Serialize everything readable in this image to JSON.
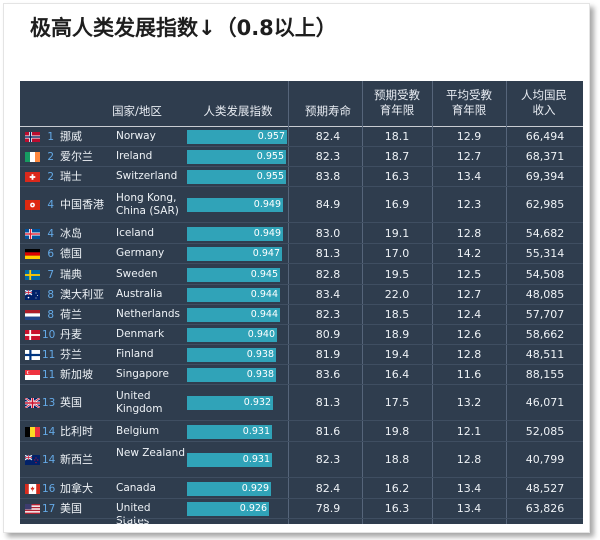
{
  "title": "极高人类发展指数↓（0.8以上）",
  "headers": {
    "country": "国家/地区",
    "hdi": "人类发展指数",
    "life": "预期寿命",
    "expected_school_1": "预期受教",
    "expected_school_2": "育年限",
    "mean_school_1": "平均受教",
    "mean_school_2": "育年限",
    "gni_1": "人均国民",
    "gni_2": "收入"
  },
  "colors": {
    "table_bg": "#2f3d4e",
    "bar": "#30a3b8",
    "rank": "#64a9e6"
  },
  "rows": [
    {
      "rank": "1",
      "cn": "挪威",
      "en": "Norway",
      "hdi": "0.957",
      "hdi_value": 0.957,
      "life": "82.4",
      "expected": "18.1",
      "mean": "12.9",
      "gni": "66,494",
      "flag": "norway-flag"
    },
    {
      "rank": "2",
      "cn": "爱尔兰",
      "en": "Ireland",
      "hdi": "0.955",
      "hdi_value": 0.955,
      "life": "82.3",
      "expected": "18.7",
      "mean": "12.7",
      "gni": "68,371",
      "flag": "ireland-flag"
    },
    {
      "rank": "2",
      "cn": "瑞士",
      "en": "Switzerland",
      "hdi": "0.955",
      "hdi_value": 0.955,
      "life": "83.8",
      "expected": "16.3",
      "mean": "13.4",
      "gni": "69,394",
      "flag": "switzerland-flag"
    },
    {
      "rank": "4",
      "cn": "中国香港",
      "en": "Hong Kong, China (SAR)",
      "hdi": "0.949",
      "hdi_value": 0.949,
      "life": "84.9",
      "expected": "16.9",
      "mean": "12.3",
      "gni": "62,985",
      "flag": "hongkong-flag"
    },
    {
      "rank": "4",
      "cn": "冰岛",
      "en": "Iceland",
      "hdi": "0.949",
      "hdi_value": 0.949,
      "life": "83.0",
      "expected": "19.1",
      "mean": "12.8",
      "gni": "54,682",
      "flag": "iceland-flag"
    },
    {
      "rank": "6",
      "cn": "德国",
      "en": "Germany",
      "hdi": "0.947",
      "hdi_value": 0.947,
      "life": "81.3",
      "expected": "17.0",
      "mean": "14.2",
      "gni": "55,314",
      "flag": "germany-flag"
    },
    {
      "rank": "7",
      "cn": "瑞典",
      "en": "Sweden",
      "hdi": "0.945",
      "hdi_value": 0.945,
      "life": "82.8",
      "expected": "19.5",
      "mean": "12.5",
      "gni": "54,508",
      "flag": "sweden-flag"
    },
    {
      "rank": "8",
      "cn": "澳大利亚",
      "en": "Australia",
      "hdi": "0.944",
      "hdi_value": 0.944,
      "life": "83.4",
      "expected": "22.0",
      "mean": "12.7",
      "gni": "48,085",
      "flag": "australia-flag"
    },
    {
      "rank": "8",
      "cn": "荷兰",
      "en": "Netherlands",
      "hdi": "0.944",
      "hdi_value": 0.944,
      "life": "82.3",
      "expected": "18.5",
      "mean": "12.4",
      "gni": "57,707",
      "flag": "netherlands-flag"
    },
    {
      "rank": "10",
      "cn": "丹麦",
      "en": "Denmark",
      "hdi": "0.940",
      "hdi_value": 0.94,
      "life": "80.9",
      "expected": "18.9",
      "mean": "12.6",
      "gni": "58,662",
      "flag": "denmark-flag"
    },
    {
      "rank": "11",
      "cn": "芬兰",
      "en": "Finland",
      "hdi": "0.938",
      "hdi_value": 0.938,
      "life": "81.9",
      "expected": "19.4",
      "mean": "12.8",
      "gni": "48,511",
      "flag": "finland-flag"
    },
    {
      "rank": "11",
      "cn": "新加坡",
      "en": "Singapore",
      "hdi": "0.938",
      "hdi_value": 0.938,
      "life": "83.6",
      "expected": "16.4",
      "mean": "11.6",
      "gni": "88,155",
      "flag": "singapore-flag"
    },
    {
      "rank": "13",
      "cn": "英国",
      "en": "United Kingdom",
      "hdi": "0.932",
      "hdi_value": 0.932,
      "life": "81.3",
      "expected": "17.5",
      "mean": "13.2",
      "gni": "46,071",
      "flag": "uk-flag"
    },
    {
      "rank": "14",
      "cn": "比利时",
      "en": "Belgium",
      "hdi": "0.931",
      "hdi_value": 0.931,
      "life": "81.6",
      "expected": "19.8",
      "mean": "12.1",
      "gni": "52,085",
      "flag": "belgium-flag"
    },
    {
      "rank": "14",
      "cn": "新西兰",
      "en": "New Zealand",
      "hdi": "0.931",
      "hdi_value": 0.931,
      "life": "82.3",
      "expected": "18.8",
      "mean": "12.8",
      "gni": "40,799",
      "flag": "newzealand-flag"
    },
    {
      "rank": "16",
      "cn": "加拿大",
      "en": "Canada",
      "hdi": "0.929",
      "hdi_value": 0.929,
      "life": "82.4",
      "expected": "16.2",
      "mean": "13.4",
      "gni": "48,527",
      "flag": "canada-flag"
    },
    {
      "rank": "17",
      "cn": "美国",
      "en": "United States",
      "hdi": "0.926",
      "hdi_value": 0.926,
      "life": "78.9",
      "expected": "16.3",
      "mean": "13.4",
      "gni": "63,826",
      "flag": "usa-flag"
    }
  ]
}
